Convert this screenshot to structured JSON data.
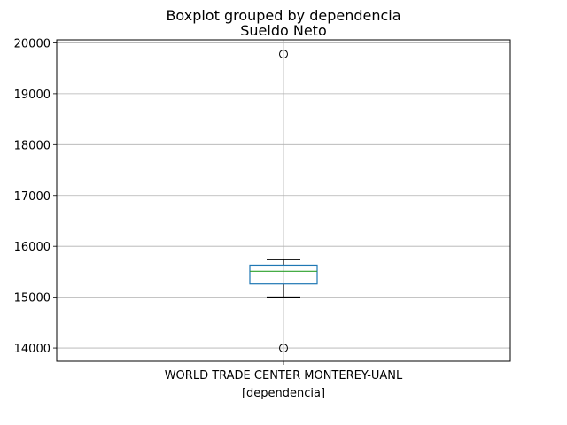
{
  "chart_data": {
    "type": "box",
    "suptitle": "Boxplot grouped by dependencia",
    "title": "Sueldo Neto",
    "xlabel": "[dependencia]",
    "ylabel": "",
    "categories": [
      "WORLD TRADE CENTER MONTEREY-UANL"
    ],
    "boxes": [
      {
        "category": "WORLD TRADE CENTER MONTEREY-UANL",
        "whisker_low": 15000,
        "q1": 15260,
        "median": 15510,
        "q3": 15630,
        "whisker_high": 15740,
        "outliers": [
          19780,
          14000
        ]
      }
    ],
    "ylim": [
      13740,
      20060
    ],
    "yticks": [
      14000,
      15000,
      16000,
      17000,
      18000,
      19000,
      20000
    ],
    "grid": true,
    "colors": {
      "box": "#1f77b4",
      "median": "#2ca02c",
      "whisker": "#000000",
      "grid": "#b0b0b0",
      "outlier_edge": "#000000"
    }
  }
}
